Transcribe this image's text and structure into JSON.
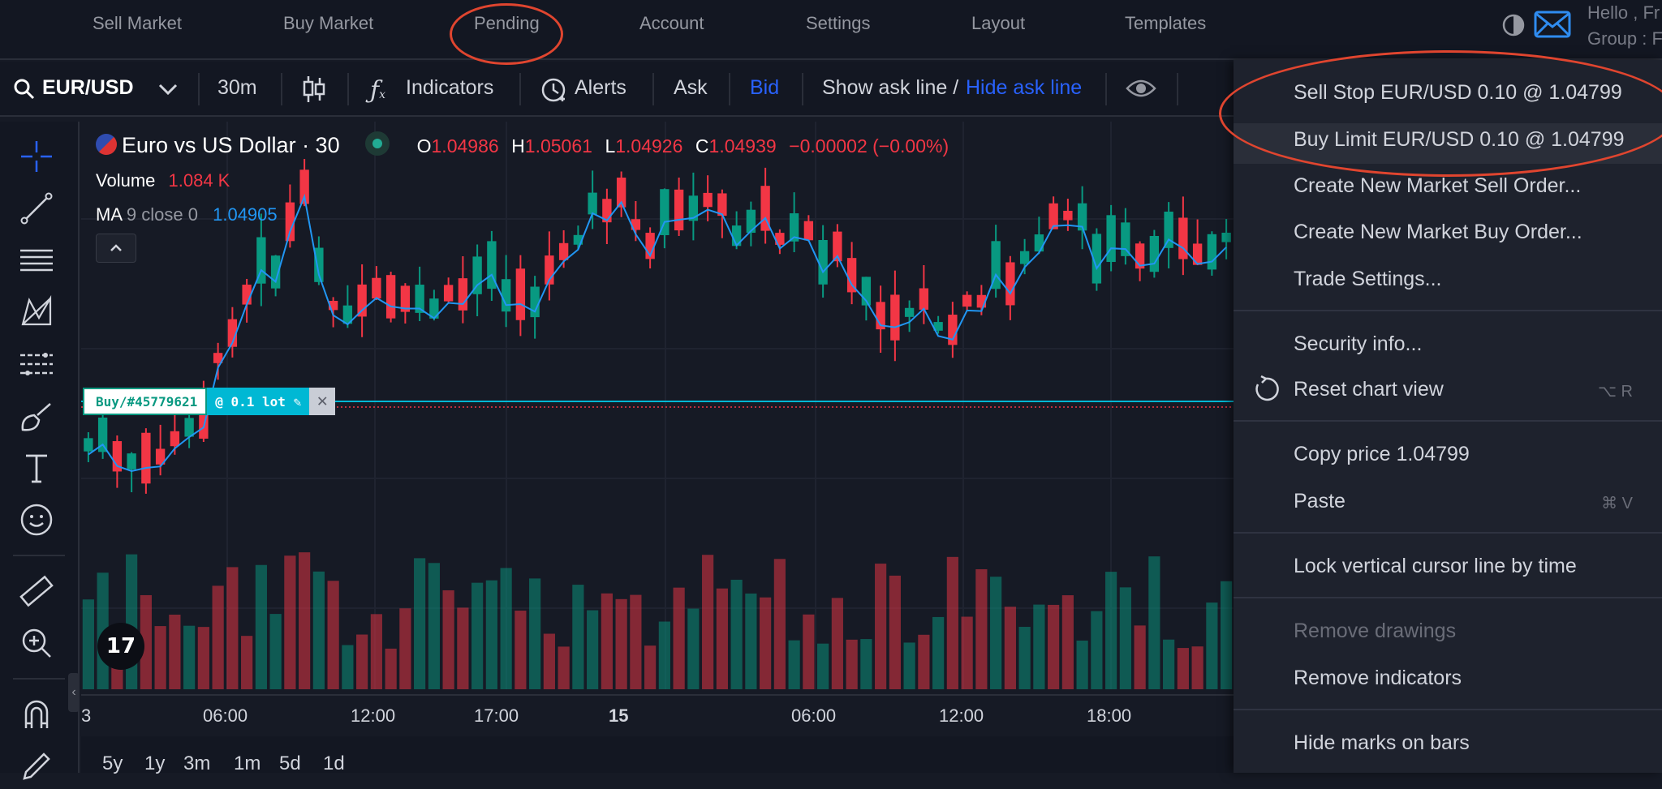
{
  "nav": {
    "items": [
      "Sell Market",
      "Buy Market",
      "Pending",
      "Account",
      "Settings",
      "Layout",
      "Templates"
    ],
    "greeting": "Hello , Fr",
    "group": "Group : F"
  },
  "toolbar": {
    "symbol": "EUR/USD",
    "interval": "30m",
    "indicators": "Indicators",
    "alerts": "Alerts",
    "ask": "Ask",
    "bid": "Bid",
    "show_ask": "Show ask line /",
    "hide_ask": "Hide ask line"
  },
  "legend": {
    "title": "Euro vs US Dollar · 30",
    "o_label": "O",
    "o": "1.04986",
    "h_label": "H",
    "h": "1.05061",
    "l_label": "L",
    "l": "1.04926",
    "c_label": "C",
    "c": "1.04939",
    "change": "−0.00002 (−0.00%)",
    "volume_label": "Volume",
    "volume": "1.084 K",
    "ma_label": "MA",
    "ma_params": "9 close 0",
    "ma_value": "1.04905"
  },
  "order_line": {
    "label": "Buy/#45779621",
    "lot": "@ 0.1 lot ✎",
    "close": "✕"
  },
  "time_axis": [
    "3",
    "06:00",
    "12:00",
    "17:00",
    "15",
    "06:00",
    "12:00",
    "18:00"
  ],
  "ranges": [
    "5y",
    "1y",
    "3m",
    "1m",
    "5d",
    "1d"
  ],
  "menu": {
    "sell_stop": "Sell Stop EUR/USD 0.10 @ 1.04799",
    "buy_limit": "Buy Limit EUR/USD 0.10 @ 1.04799",
    "new_sell": "Create New Market Sell Order...",
    "new_buy": "Create New Market Buy Order...",
    "trade_settings": "Trade Settings...",
    "security_info": "Security info...",
    "reset_view": "Reset chart view",
    "reset_shortcut": "⌥ R",
    "copy_price": "Copy price 1.04799",
    "paste": "Paste",
    "paste_shortcut": "⌘ V",
    "lock_cursor": "Lock vertical cursor line by time",
    "remove_drawings": "Remove drawings",
    "remove_indicators": "Remove indicators",
    "hide_marks": "Hide marks on bars"
  },
  "colors": {
    "up": "#089981",
    "down": "#f23645",
    "accent": "#2962ff",
    "ma_line": "#2196f3",
    "annotation": "#e0452f"
  },
  "icons": [
    "search-icon",
    "chevron-down-icon",
    "candles-icon",
    "function-icon",
    "alarm-clock-icon",
    "eye-icon",
    "contrast-icon",
    "mail-icon",
    "crosshair-icon",
    "trend-line-icon",
    "lines-icon",
    "pattern-icon",
    "measure-lines-icon",
    "brush-icon",
    "text-icon",
    "emoji-icon",
    "ruler-icon",
    "zoom-in-icon",
    "magnet-icon",
    "pencil-icon",
    "reset-icon",
    "tradingview-logo"
  ]
}
